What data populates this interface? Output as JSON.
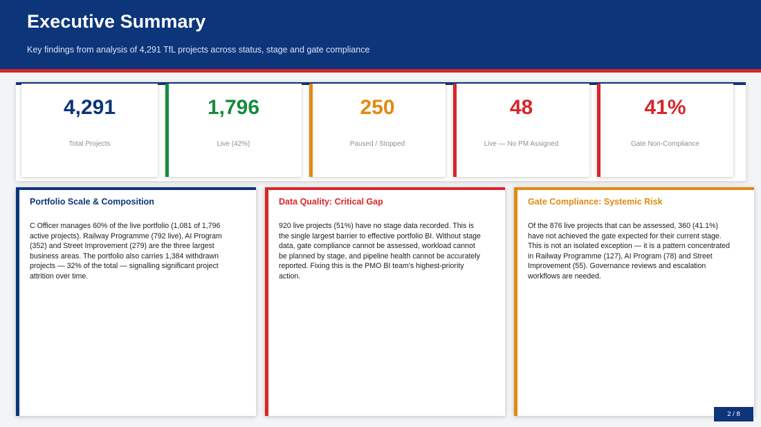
{
  "header": {
    "title": "Executive Summary",
    "subtitle": "Key findings from analysis of 4,291 TfL projects across status, stage and gate compliance"
  },
  "kpis": [
    {
      "value": "4,291",
      "label": "Total Projects",
      "color": "#0c357a"
    },
    {
      "value": "1,796",
      "label": "Live  (42%)",
      "color": "#168c3e"
    },
    {
      "value": "250",
      "label": "Paused / Stopped",
      "color": "#e08a12"
    },
    {
      "value": "48",
      "label": "Live — No PM Assigned",
      "color": "#d8262b"
    },
    {
      "value": "41%",
      "label": "Gate Non-Compliance",
      "color": "#d8262b"
    }
  ],
  "panels": [
    {
      "title": "Portfolio Scale & Composition",
      "color": "#0c357a",
      "body": "C Officer manages 60% of the live portfolio (1,081 of 1,796 active projects). Railway Programme (792 live), AI Program (352) and Street Improvement (279) are the three largest business areas. The portfolio also carries 1,384 withdrawn projects — 32% of the total — signalling significant project attrition over time."
    },
    {
      "title": "Data Quality: Critical Gap",
      "color": "#d8262b",
      "body": "920 live projects (51%) have no stage data recorded. This is the single largest barrier to effective portfolio BI. Without stage data, gate compliance cannot be assessed, workload cannot be planned by stage, and pipeline health cannot be accurately reported. Fixing this is the PMO BI team's highest-priority action."
    },
    {
      "title": "Gate Compliance: Systemic Risk",
      "color": "#e08a12",
      "body": "Of the 876 live projects that can be assessed, 360 (41.1%) have not achieved the gate expected for their current stage. This is not an isolated exception — it is a pattern concentrated in Railway Programme (127), AI Program (78) and Street Improvement (55). Governance reviews and escalation workflows are needed."
    }
  ],
  "footer": {
    "page": "2 / 8"
  }
}
